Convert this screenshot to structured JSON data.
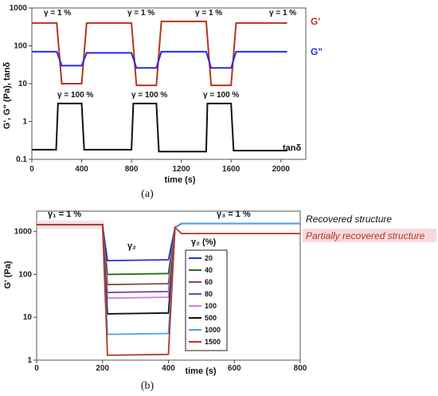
{
  "chart_data": [
    {
      "panel": "a",
      "type": "line",
      "caption": "(a)",
      "xlabel": "time (s)",
      "ylabel": "G', G\" (Pa), tanδ",
      "xlim": [
        0,
        2200
      ],
      "ylim": [
        0.1,
        1000
      ],
      "yscale": "log",
      "x_ticks": [
        0,
        400,
        800,
        1200,
        1600,
        2000
      ],
      "y_ticks": [
        {
          "v": 0.1,
          "t": "0.1"
        },
        {
          "v": 1,
          "t": "1"
        },
        {
          "v": 10,
          "t": "10"
        },
        {
          "v": 100,
          "t": "100"
        },
        {
          "v": 1000,
          "t": "1000"
        }
      ],
      "series": [
        {
          "name": "G'",
          "color": "#b5351d",
          "x": [
            0,
            200,
            240,
            400,
            440,
            800,
            840,
            1000,
            1040,
            1400,
            1440,
            1600,
            1640,
            2050
          ],
          "y": [
            400,
            400,
            10,
            10,
            400,
            400,
            9,
            9,
            440,
            440,
            9,
            9,
            400,
            400
          ]
        },
        {
          "name": "G\"",
          "color": "#2a2ae0",
          "x": [
            0,
            200,
            240,
            400,
            440,
            800,
            840,
            1000,
            1040,
            1400,
            1440,
            1600,
            1640,
            2050
          ],
          "y": [
            70,
            70,
            30,
            30,
            65,
            65,
            26,
            26,
            70,
            70,
            26,
            26,
            70,
            70
          ]
        },
        {
          "name": "tanδ",
          "color": "#111111",
          "x": [
            0,
            195,
            210,
            400,
            420,
            800,
            815,
            1000,
            1020,
            1400,
            1410,
            1600,
            1620,
            2050
          ],
          "y": [
            0.18,
            0.18,
            3,
            3,
            0.18,
            0.18,
            3,
            3,
            0.16,
            0.16,
            3,
            3,
            0.17,
            0.17
          ]
        }
      ],
      "annotations": {
        "low_strain": "γ = 1 %",
        "high_strain": "γ = 100 %",
        "gp": "G'",
        "gpp": "G\"",
        "tan": "tanδ"
      }
    },
    {
      "panel": "b",
      "type": "line",
      "caption": "(b)",
      "xlabel": "time (s)",
      "ylabel": "G' (Pa)",
      "xlim": [
        0,
        800
      ],
      "ylim": [
        1,
        3000
      ],
      "yscale": "log",
      "x_ticks": [
        0,
        200,
        400,
        600,
        800
      ],
      "y_ticks": [
        {
          "v": 1,
          "t": "1"
        },
        {
          "v": 10,
          "t": "10"
        },
        {
          "v": 100,
          "t": "100"
        },
        {
          "v": 1000,
          "t": "1000"
        }
      ],
      "annotations": {
        "gamma1": "γ₁ = 1 %",
        "gamma2": "γ₂",
        "gamma3": "γ₃ = 1 %",
        "legend_title": "γ₂ (%)",
        "recovered": "Recovered structure",
        "partial": "Partially recovered structure"
      },
      "series": [
        {
          "name": "20",
          "color": "#2a2ae0",
          "low": 210
        },
        {
          "name": "40",
          "color": "#2e6b1f",
          "low": 100
        },
        {
          "name": "60",
          "color": "#8a4b3a",
          "low": 58
        },
        {
          "name": "80",
          "color": "#6a4ab0",
          "low": 38
        },
        {
          "name": "100",
          "color": "#d67ad6",
          "low": 28
        },
        {
          "name": "500",
          "color": "#111111",
          "low": 12
        },
        {
          "name": "1000",
          "color": "#4aa0e8",
          "low": 4
        },
        {
          "name": "1500",
          "color": "#b5351d",
          "low": 1.3
        }
      ],
      "initial_value": 1450,
      "recovered_value": 1550,
      "partial_value": 900
    }
  ]
}
